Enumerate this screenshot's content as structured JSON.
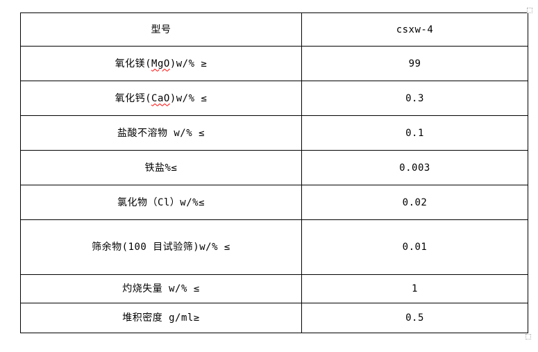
{
  "page": {
    "background_color": "#ffffff"
  },
  "colors": {
    "table_border": "#000000",
    "text": "#000000",
    "spellcheck_underline": "#ff0000"
  },
  "table": {
    "columns": [
      "specification-name",
      "specification-value"
    ],
    "rows": [
      {
        "label_prefix": "型号",
        "label_misspelled": "",
        "label_suffix": "",
        "value": "csxw-4"
      },
      {
        "label_prefix": "氧化镁(",
        "label_misspelled": "MgO",
        "label_suffix": ")w/% ≥",
        "value": "99"
      },
      {
        "label_prefix": "氧化钙(",
        "label_misspelled": "CaO",
        "label_suffix": ")w/% ≤",
        "value": "0.3"
      },
      {
        "label_prefix": "盐酸不溶物 w/% ≤",
        "label_misspelled": "",
        "label_suffix": "",
        "value": "0.1"
      },
      {
        "label_prefix": "铁盐%≤",
        "label_misspelled": "",
        "label_suffix": "",
        "value": "0.003"
      },
      {
        "label_prefix": "氯化物（Cl）w/%≤",
        "label_misspelled": "",
        "label_suffix": "",
        "value": "0.02"
      },
      {
        "label_prefix": "筛余物(100 目试验筛)w/% ≤",
        "label_misspelled": "",
        "label_suffix": "",
        "value": "0.01"
      },
      {
        "label_prefix": "灼烧失量 w/% ≤",
        "label_misspelled": "",
        "label_suffix": "",
        "value": "1"
      },
      {
        "label_prefix": "堆积密度 g/ml≥",
        "label_misspelled": "",
        "label_suffix": "",
        "value": "0.5"
      }
    ]
  }
}
